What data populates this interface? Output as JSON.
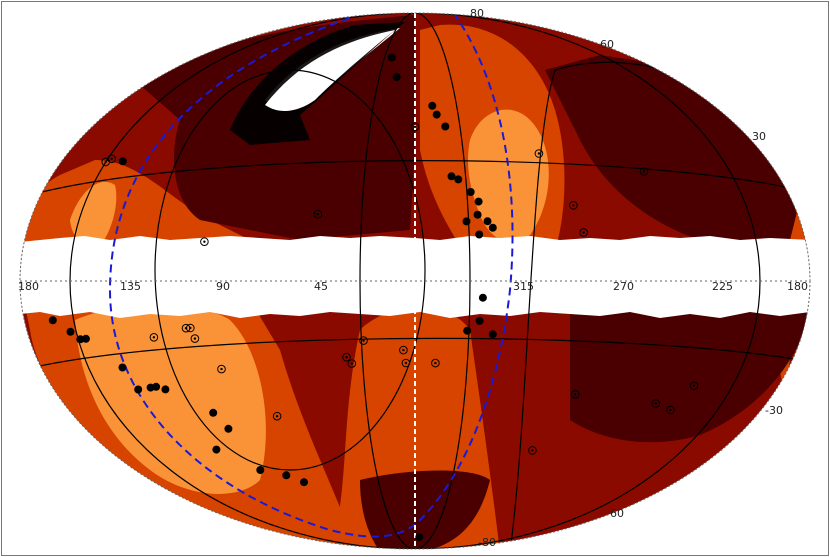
{
  "chart_data": {
    "type": "scatter",
    "projection": "aitoff-hammer (galactic, all-sky)",
    "background_zones": [
      {
        "name": "darkest",
        "color": "#4a0000"
      },
      {
        "name": "dark",
        "color": "#8b0a00"
      },
      {
        "name": "medium",
        "color": "#d64400"
      },
      {
        "name": "light",
        "color": "#fa9338"
      }
    ],
    "masked_band_color": "#ffffff",
    "longitude_labels": [
      "180",
      "135",
      "90",
      "45",
      "315",
      "270",
      "225",
      "180"
    ],
    "latitude_labels": [
      "80",
      "60",
      "30",
      "-30",
      "60",
      "-80"
    ],
    "overlay_line_color": "#000000",
    "dashed_curve_color": "#1a1ad4",
    "central_meridian_color": "#ffffff",
    "grid": true,
    "series": [
      {
        "marker": "filled-circle",
        "color": "#000000",
        "points": [
          {
            "lon": 25,
            "lat": 72
          },
          {
            "lon": 15,
            "lat": 65
          },
          {
            "lon": 349,
            "lat": 55
          },
          {
            "lon": 347,
            "lat": 52
          },
          {
            "lon": 343,
            "lat": 48
          },
          {
            "lon": 343,
            "lat": 32
          },
          {
            "lon": 340,
            "lat": 31
          },
          {
            "lon": 335,
            "lat": 27
          },
          {
            "lon": 332,
            "lat": 24
          },
          {
            "lon": 333,
            "lat": 20
          },
          {
            "lon": 338,
            "lat": 18
          },
          {
            "lon": 329,
            "lat": 18
          },
          {
            "lon": 327,
            "lat": 16
          },
          {
            "lon": 333,
            "lat": 14
          },
          {
            "lon": 146,
            "lat": 30
          },
          {
            "lon": 332,
            "lat": -5
          },
          {
            "lon": 333,
            "lat": -12
          },
          {
            "lon": 338,
            "lat": -15
          },
          {
            "lon": 327,
            "lat": -16
          },
          {
            "lon": 164,
            "lat": -9
          },
          {
            "lon": 156,
            "lat": -12
          },
          {
            "lon": 152,
            "lat": -14
          },
          {
            "lon": 149,
            "lat": -14
          },
          {
            "lon": 136,
            "lat": -22
          },
          {
            "lon": 134,
            "lat": -28
          },
          {
            "lon": 127,
            "lat": -28
          },
          {
            "lon": 124,
            "lat": -28
          },
          {
            "lon": 120,
            "lat": -29
          },
          {
            "lon": 103,
            "lat": -37
          },
          {
            "lon": 101,
            "lat": -42
          },
          {
            "lon": 118,
            "lat": -47
          },
          {
            "lon": 105,
            "lat": -55
          },
          {
            "lon": 92,
            "lat": -58
          },
          {
            "lon": 85,
            "lat": -61
          },
          {
            "lon": 345,
            "lat": -85
          }
        ]
      },
      {
        "marker": "circled-dot",
        "color": "#000000",
        "points": [
          {
            "lon": 155,
            "lat": 29
          },
          {
            "lon": 153,
            "lat": 30
          },
          {
            "lon": 90,
            "lat": 11
          },
          {
            "lon": 42,
            "lat": 20
          },
          {
            "lon": 298,
            "lat": 38
          },
          {
            "lon": 290,
            "lat": 22
          },
          {
            "lon": 288,
            "lat": 14
          },
          {
            "lon": 250,
            "lat": 30
          },
          {
            "lon": 0,
            "lat": 48
          },
          {
            "lon": 99,
            "lat": -13
          },
          {
            "lon": 97,
            "lat": -13
          },
          {
            "lon": 96,
            "lat": -16
          },
          {
            "lon": 115,
            "lat": -15
          },
          {
            "lon": 22,
            "lat": -18
          },
          {
            "lon": 30,
            "lat": -23
          },
          {
            "lon": 28,
            "lat": -25
          },
          {
            "lon": 5,
            "lat": -21
          },
          {
            "lon": 4,
            "lat": -25
          },
          {
            "lon": 351,
            "lat": -25
          },
          {
            "lon": 88,
            "lat": -25
          },
          {
            "lon": 71,
            "lat": -40
          },
          {
            "lon": 283,
            "lat": -33
          },
          {
            "lon": 240,
            "lat": -33
          },
          {
            "lon": 230,
            "lat": -34
          },
          {
            "lon": 226,
            "lat": -27
          },
          {
            "lon": 289,
            "lat": -51
          }
        ]
      }
    ]
  }
}
